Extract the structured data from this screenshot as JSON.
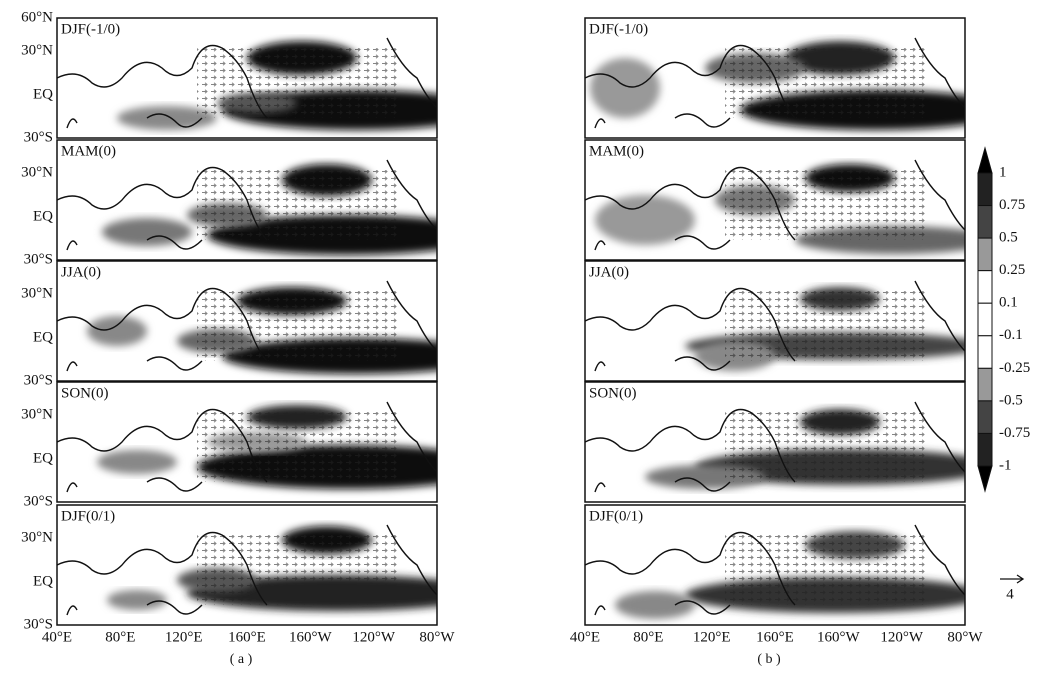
{
  "figures": [
    {
      "caption": "( a )",
      "panels": [
        "DJF(-1/0)",
        "MAM(0)",
        "JJA(0)",
        "SON(0)",
        "DJF(0/1)"
      ]
    },
    {
      "caption": "( b )",
      "panels": [
        "DJF(-1/0)",
        "MAM(0)",
        "JJA(0)",
        "SON(0)",
        "DJF(0/1)"
      ]
    }
  ],
  "lat_labels": {
    "top": "60°N",
    "mid": "30°N",
    "eq": "EQ",
    "bottom": "30°S"
  },
  "lon_labels": [
    "40°E",
    "80°E",
    "120°E",
    "160°E",
    "160°W",
    "120°W",
    "80°W"
  ],
  "colorbar_labels": [
    "1",
    "0.75",
    "0.5",
    "0.25",
    "0.1",
    "-0.1",
    "-0.25",
    "-0.5",
    "-0.75",
    "-1"
  ],
  "vector_reference": "4"
}
